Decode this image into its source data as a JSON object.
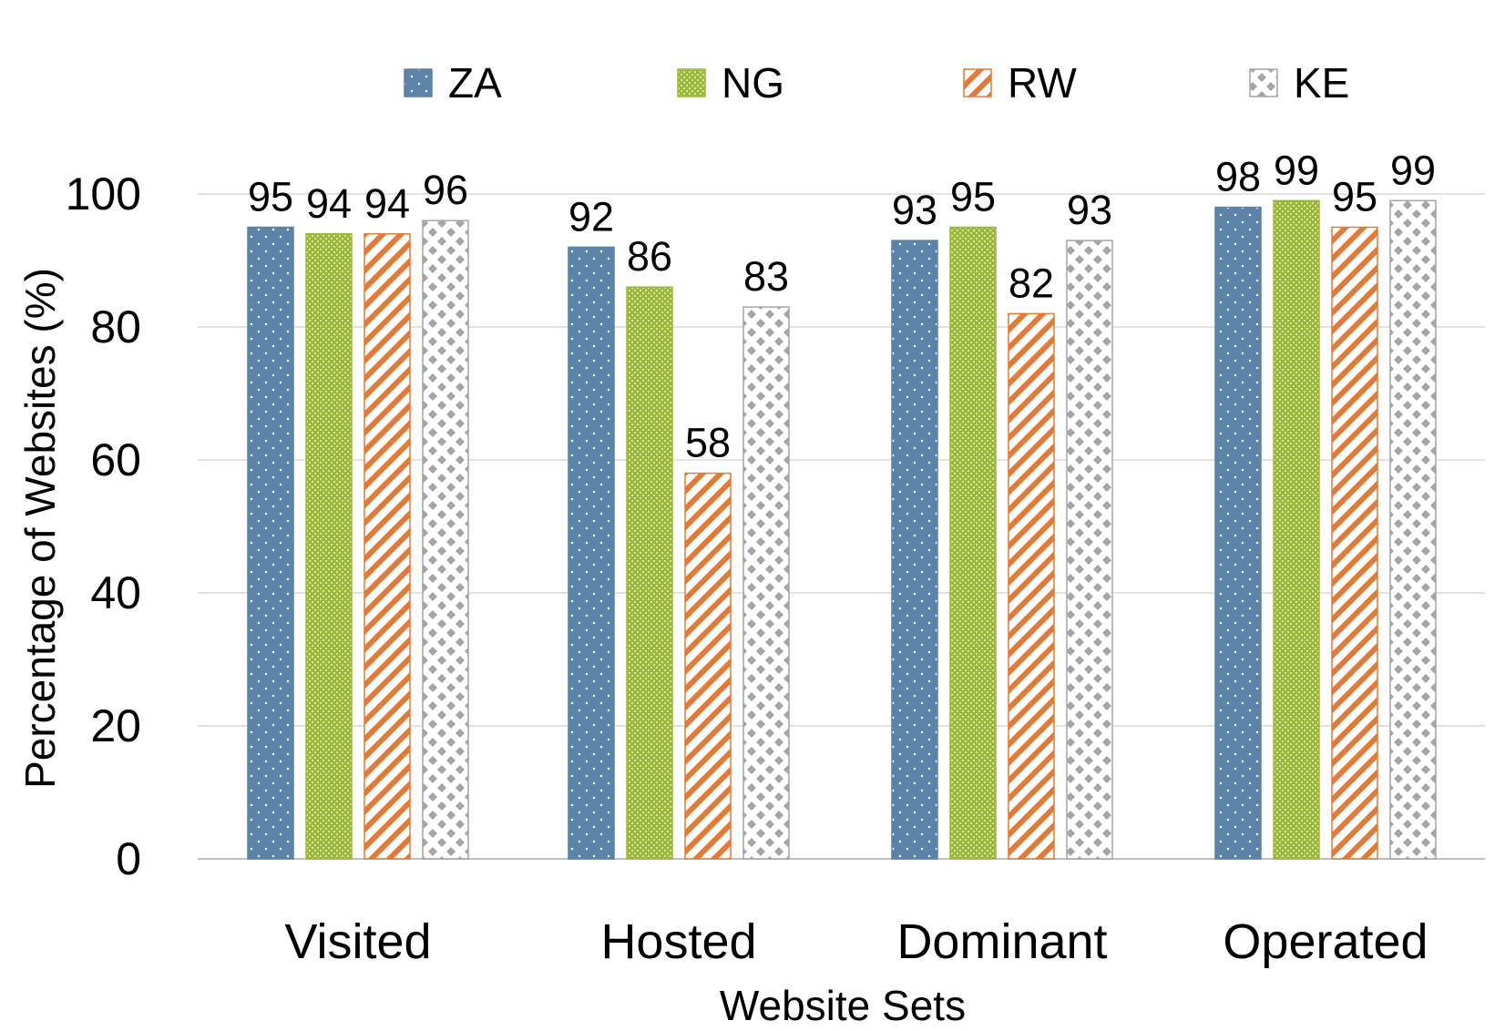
{
  "chart_data": {
    "type": "bar",
    "title": "",
    "xlabel": "Website Sets",
    "ylabel": "Percentage of Websites (%)",
    "ylim": [
      0,
      100
    ],
    "yticks": [
      "0",
      "20",
      "40",
      "60",
      "80",
      "100"
    ],
    "grid": "horizontal",
    "legend_position": "top",
    "categories": [
      "Visited",
      "Hosted",
      "Dominant",
      "Operated"
    ],
    "series": [
      {
        "name": "ZA",
        "values": [
          95,
          92,
          93,
          98
        ],
        "color": "#5b82a9",
        "pattern": "dots"
      },
      {
        "name": "NG",
        "values": [
          94,
          86,
          95,
          99
        ],
        "color": "#9bb83a",
        "pattern": "dense-dots"
      },
      {
        "name": "RW",
        "values": [
          94,
          58,
          82,
          95
        ],
        "color": "#e07b39",
        "pattern": "diagonal-stripes"
      },
      {
        "name": "KE",
        "values": [
          96,
          83,
          93,
          99
        ],
        "color": "#a5a5a5",
        "pattern": "diamond-checker"
      }
    ],
    "data_labels": [
      [
        "95",
        "92",
        "93",
        "98"
      ],
      [
        "94",
        "86",
        "95",
        "99"
      ],
      [
        "94",
        "58",
        "82",
        "95"
      ],
      [
        "96",
        "83",
        "93",
        "99"
      ]
    ]
  }
}
